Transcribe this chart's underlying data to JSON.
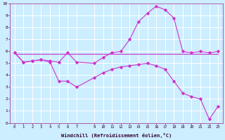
{
  "xlabel": "Windchill (Refroidissement éolien,°C)",
  "background_color": "#cceeff",
  "grid_color": "#ffffff",
  "line_color": "#cc33cc",
  "xlim": [
    -0.5,
    23.5
  ],
  "ylim": [
    0,
    10
  ],
  "xticks": [
    0,
    1,
    2,
    3,
    4,
    5,
    6,
    7,
    9,
    10,
    11,
    12,
    13,
    14,
    15,
    16,
    17,
    18,
    19,
    20,
    21,
    22,
    23
  ],
  "yticks": [
    0,
    1,
    2,
    3,
    4,
    5,
    6,
    7,
    8,
    9,
    10
  ],
  "line1_x": [
    0,
    1,
    2,
    3,
    4,
    5,
    6,
    7,
    9,
    10,
    11,
    12,
    13,
    14,
    15,
    16,
    17,
    18,
    19,
    20,
    21,
    22,
    23
  ],
  "line1_y": [
    5.9,
    5.1,
    5.2,
    5.3,
    5.2,
    5.1,
    5.9,
    5.1,
    5.0,
    5.5,
    5.9,
    6.0,
    7.0,
    8.5,
    9.2,
    9.8,
    9.5,
    8.8,
    6.0,
    5.9,
    6.0,
    5.9,
    6.0
  ],
  "line2_x": [
    0,
    23
  ],
  "line2_y": [
    5.8,
    5.8
  ],
  "line3_x": [
    0,
    1,
    2,
    3,
    4,
    5,
    6,
    7,
    9,
    10,
    11,
    12,
    13,
    14,
    15,
    16,
    17,
    18,
    19,
    20,
    21,
    22,
    23
  ],
  "line3_y": [
    5.9,
    5.1,
    5.2,
    5.3,
    5.1,
    3.5,
    3.5,
    3.0,
    3.8,
    4.2,
    4.5,
    4.7,
    4.8,
    4.9,
    5.0,
    4.8,
    4.5,
    3.5,
    2.5,
    2.2,
    2.0,
    0.3,
    1.4
  ]
}
